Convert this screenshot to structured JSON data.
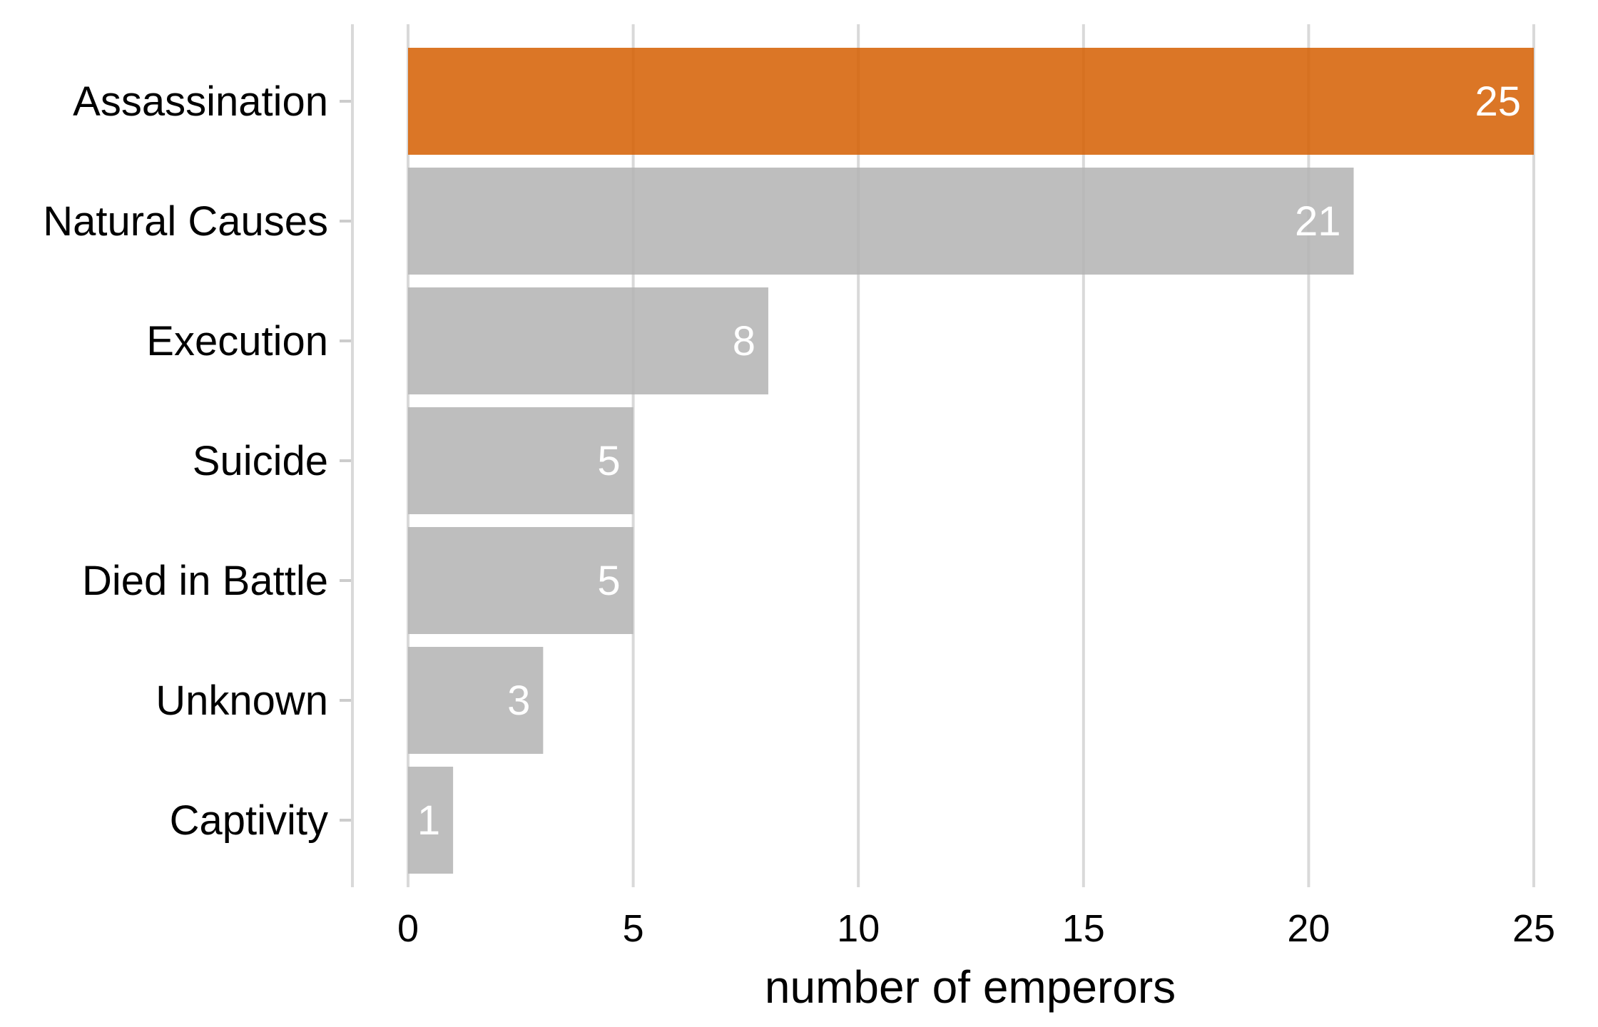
{
  "chart_data": {
    "type": "bar",
    "orientation": "horizontal",
    "categories": [
      "Assassination",
      "Natural Causes",
      "Execution",
      "Suicide",
      "Died in Battle",
      "Unknown",
      "Captivity"
    ],
    "values": [
      25,
      21,
      8,
      5,
      5,
      3,
      1
    ],
    "value_labels": [
      "25",
      "21",
      "8",
      "5",
      "5",
      "3",
      "1"
    ],
    "highlight_index": 0,
    "colors": {
      "highlight": "#d55e00",
      "default": "#b3b3b3"
    },
    "title": "",
    "xlabel": "number of emperors",
    "ylabel": "",
    "xlim": [
      0,
      25
    ],
    "xticks": [
      0,
      5,
      10,
      15,
      20,
      25
    ],
    "xtick_labels": [
      "0",
      "5",
      "10",
      "15",
      "20",
      "25"
    ],
    "grid": "vertical"
  }
}
